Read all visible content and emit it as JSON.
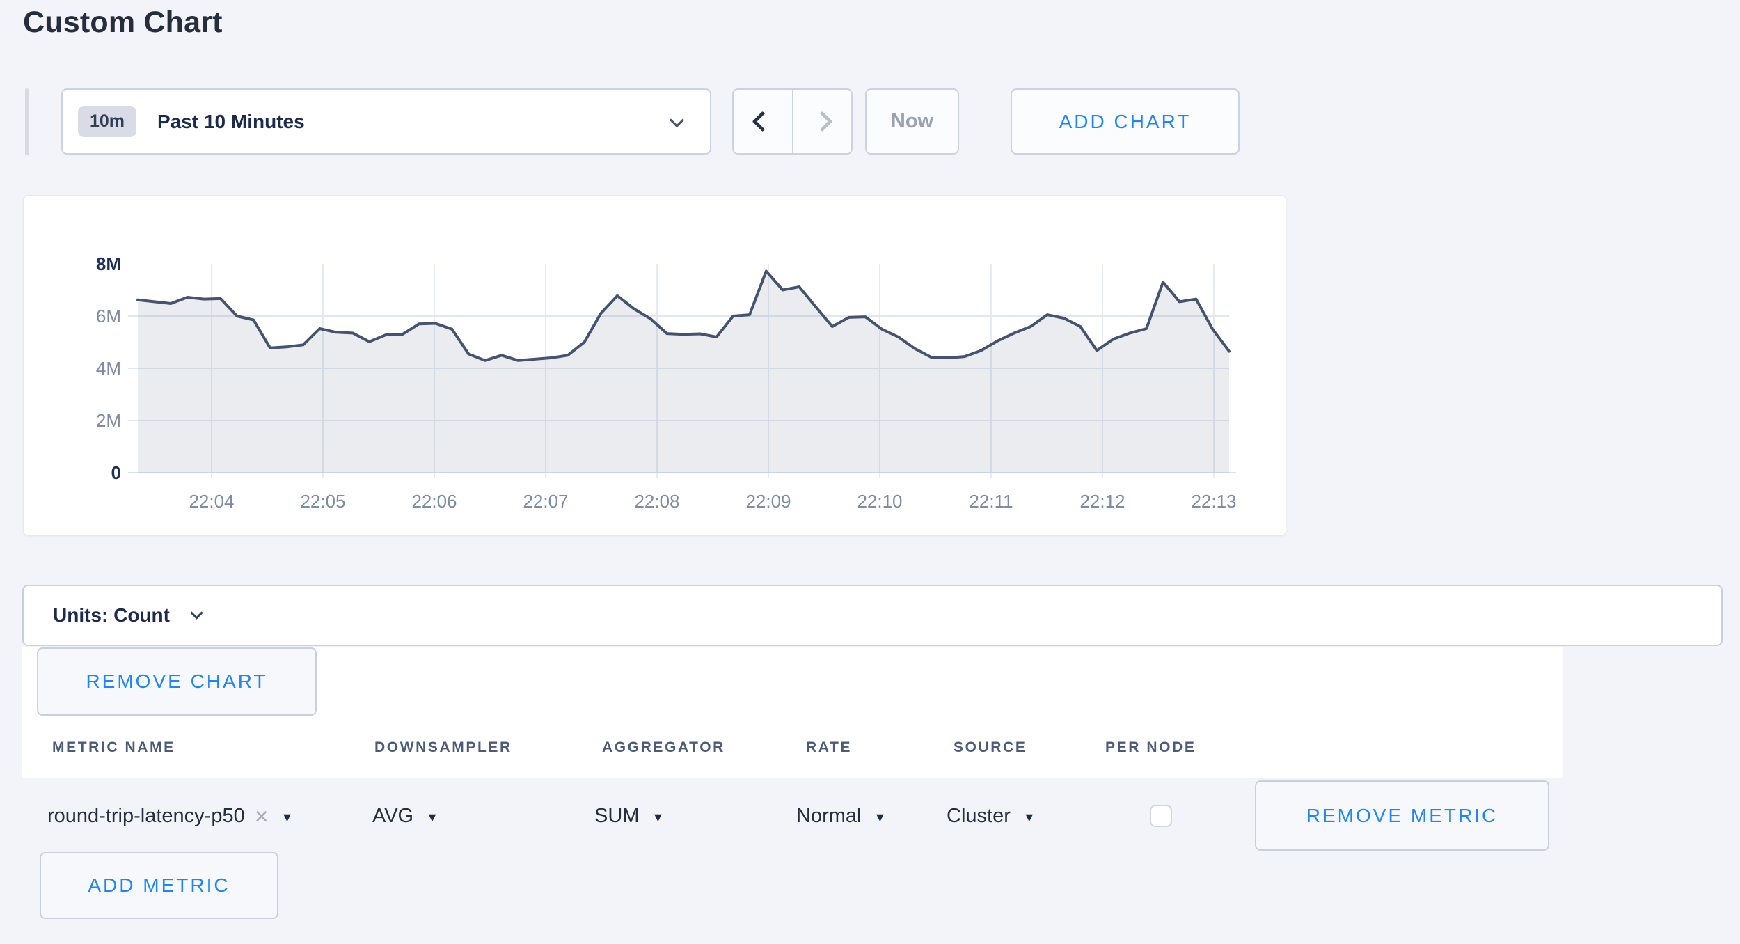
{
  "page": {
    "title": "Custom Chart",
    "background_color": "#f2f4f9",
    "accent_blue": "#1e86fa"
  },
  "toolbar": {
    "time_window": {
      "badge": "10m",
      "label": "Past 10 Minutes"
    },
    "now_label": "Now",
    "add_chart_label": "ADD CHART"
  },
  "units_bar": {
    "label": "Units: Count"
  },
  "chart_actions": {
    "remove_chart_label": "REMOVE CHART"
  },
  "chart_data": {
    "type": "area",
    "title": "",
    "xlabel": "",
    "ylabel": "",
    "ylim": [
      0,
      8
    ],
    "y_unit": "millions (count)",
    "grid": true,
    "x_ticks": [
      "22:04",
      "22:05",
      "22:06",
      "22:07",
      "22:08",
      "22:09",
      "22:10",
      "22:11",
      "22:12",
      "22:13"
    ],
    "y_ticks": [
      {
        "value": 8,
        "label": "8M",
        "strong": true
      },
      {
        "value": 6,
        "label": "6M",
        "strong": false
      },
      {
        "value": 4,
        "label": "4M",
        "strong": false
      },
      {
        "value": 2,
        "label": "2M",
        "strong": false
      },
      {
        "value": 0,
        "label": "0",
        "strong": true
      }
    ],
    "series": [
      {
        "name": "round-trip-latency-p50 (SUM of AVG, Cluster)",
        "sample_interval_seconds": 10,
        "values_millions": [
          6.62,
          6.55,
          6.48,
          6.72,
          6.65,
          6.67,
          6.0,
          5.85,
          4.78,
          4.82,
          4.9,
          5.52,
          5.38,
          5.35,
          5.02,
          5.28,
          5.3,
          5.7,
          5.72,
          5.5,
          4.55,
          4.3,
          4.5,
          4.3,
          4.35,
          4.4,
          4.5,
          5.0,
          6.1,
          6.78,
          6.28,
          5.9,
          5.33,
          5.3,
          5.32,
          5.2,
          6.0,
          6.05,
          7.72,
          7.0,
          7.12,
          6.35,
          5.6,
          5.95,
          5.97,
          5.5,
          5.2,
          4.75,
          4.42,
          4.4,
          4.45,
          4.68,
          5.05,
          5.35,
          5.6,
          6.05,
          5.92,
          5.6,
          4.68,
          5.12,
          5.35,
          5.52,
          7.3,
          6.55,
          6.65,
          5.5,
          4.65
        ]
      }
    ],
    "colors": {
      "line": "#46536f",
      "area_fill": "rgba(104,118,146,0.14)",
      "grid_vertical": "#e6eaf2",
      "grid_horizontal": "#e3e8f0",
      "baseline": "#dce1eb",
      "axis_label": "#7e8ba6",
      "axis_label_strong": "#1d3055"
    },
    "legend": "none"
  },
  "metrics_table": {
    "columns": [
      "METRIC NAME",
      "DOWNSAMPLER",
      "AGGREGATOR",
      "RATE",
      "SOURCE",
      "PER NODE"
    ],
    "rows": [
      {
        "metric_name": "round-trip-latency-p50",
        "downsampler": "AVG",
        "aggregator": "SUM",
        "rate": "Normal",
        "source": "Cluster",
        "per_node_checked": false,
        "remove_label": "REMOVE METRIC"
      }
    ],
    "add_metric_label": "ADD METRIC"
  }
}
